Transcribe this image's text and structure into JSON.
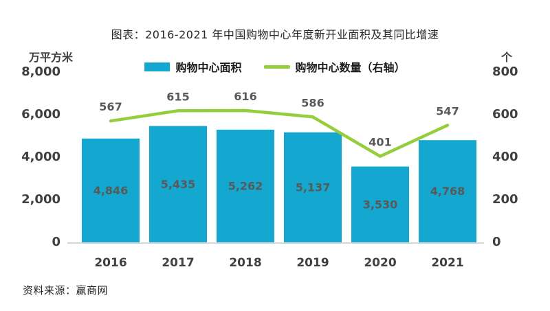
{
  "title": "图表：2016-2021 年中国购物中心年度新开业面积及其同比增速",
  "source": "资料来源：赢商网",
  "colors": {
    "bar": "#14a7cf",
    "line": "#94ce3c",
    "data_label": "#595959",
    "axis_label": "#404040",
    "baseline": "#d6d6d6"
  },
  "legend": {
    "items": [
      {
        "label": "购物中心面积",
        "marker": "bar"
      },
      {
        "label": "购物中心数量（右轴）",
        "marker": "line"
      }
    ]
  },
  "chart_data": {
    "type": "combo-bar-line",
    "title": "图表：2016-2021 年中国购物中心年度新开业面积及其同比增速",
    "categories": [
      "2016",
      "2017",
      "2018",
      "2019",
      "2020",
      "2021"
    ],
    "series": [
      {
        "name": "购物中心面积",
        "type": "bar",
        "axis": "left",
        "values": [
          4846,
          5435,
          5262,
          5137,
          3530,
          4768
        ],
        "value_labels": [
          "4,846",
          "5,435",
          "5,262",
          "5,137",
          "3,530",
          "4,768"
        ]
      },
      {
        "name": "购物中心数量（右轴）",
        "type": "line",
        "axis": "right",
        "values": [
          567,
          615,
          616,
          586,
          401,
          547
        ],
        "value_labels": [
          "567",
          "615",
          "616",
          "586",
          "401",
          "547"
        ]
      }
    ],
    "left_axis": {
      "unit": "万平方米",
      "min": 0,
      "max": 8000,
      "ticks": [
        "8,000",
        "6,000",
        "4,000",
        "2,000",
        "0"
      ]
    },
    "right_axis": {
      "unit": "个",
      "min": 0,
      "max": 800,
      "ticks": [
        "800",
        "600",
        "400",
        "200",
        "0"
      ]
    },
    "grid": false,
    "legend_position": "top"
  }
}
